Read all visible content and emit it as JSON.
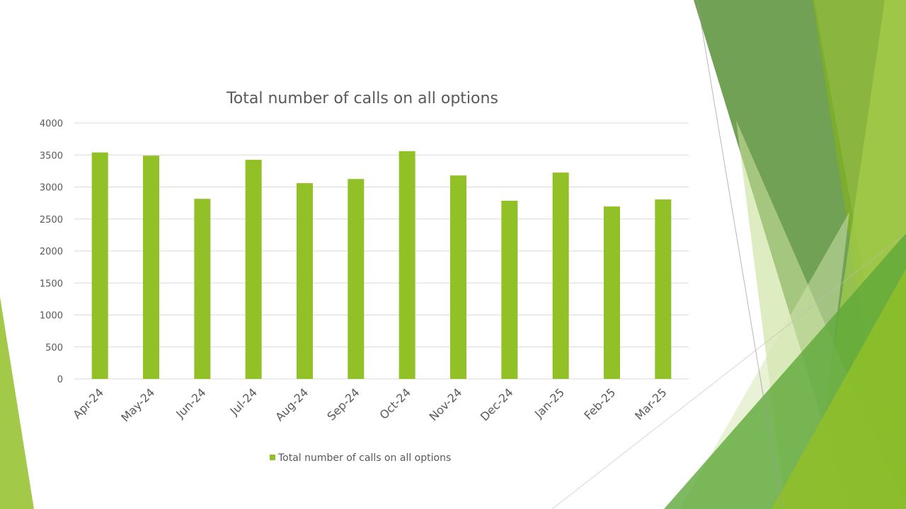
{
  "chart_data": {
    "type": "bar",
    "title": "Total number of calls on all options",
    "categories": [
      "Apr-24",
      "May-24",
      "Jun-24",
      "Jul-24",
      "Aug-24",
      "Sep-24",
      "Oct-24",
      "Nov-24",
      "Dec-24",
      "Jan-25",
      "Feb-25",
      "Mar-25"
    ],
    "series": [
      {
        "name": "Total number of calls on all options",
        "values": [
          3540,
          3490,
          2815,
          3425,
          3060,
          3125,
          3560,
          3180,
          2785,
          3225,
          2695,
          2805
        ]
      }
    ],
    "ylim": [
      0,
      4000
    ],
    "yticks": [
      0,
      500,
      1000,
      1500,
      2000,
      2500,
      3000,
      3500,
      4000
    ],
    "grid": true,
    "legend": "bottom",
    "colors": {
      "bar": "#92C027",
      "grid": "#D9D9D9",
      "text": "#595959"
    }
  }
}
